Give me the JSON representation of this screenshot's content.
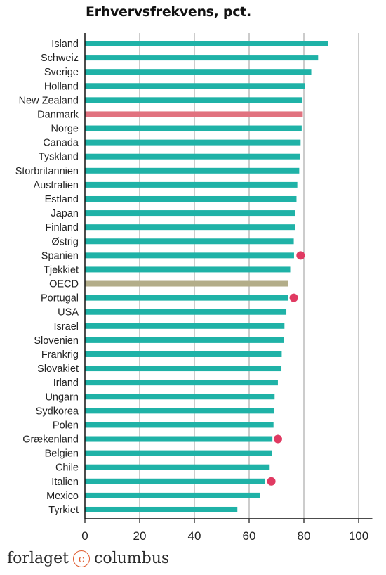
{
  "chart_data": {
    "type": "bar",
    "orientation": "horizontal",
    "title": "Erhvervsfrekvens, pct.",
    "xlim": [
      0,
      105
    ],
    "xticks": [
      0,
      20,
      40,
      60,
      80,
      100
    ],
    "grid": true,
    "categories": [
      "Island",
      "Schweiz",
      "Sverige",
      "Holland",
      "New Zealand",
      "Danmark",
      "Norge",
      "Canada",
      "Tyskland",
      "Storbritannien",
      "Australien",
      "Estland",
      "Japan",
      "Finland",
      "Østrig",
      "Spanien",
      "Tjekkiet",
      "OECD",
      "Portugal",
      "USA",
      "Israel",
      "Slovenien",
      "Frankrig",
      "Slovakiet",
      "Irland",
      "Ungarn",
      "Sydkorea",
      "Polen",
      "Grækenland",
      "Belgien",
      "Chile",
      "Italien",
      "Mexico",
      "Tyrkiet"
    ],
    "values": [
      88.8,
      85.2,
      82.7,
      80.4,
      79.5,
      79.6,
      79.2,
      78.8,
      78.5,
      78.3,
      77.6,
      77.3,
      76.8,
      76.7,
      76.3,
      76.4,
      75.0,
      74.2,
      74.3,
      73.6,
      72.9,
      72.6,
      71.9,
      71.8,
      70.5,
      69.3,
      69.1,
      68.9,
      68.5,
      68.4,
      67.5,
      65.7,
      64.0,
      55.7
    ],
    "markers": {
      "Spanien": 78.8,
      "Portugal": 76.3,
      "Grækenland": 70.5,
      "Italien": 68.1
    },
    "colors": {
      "default": "#1fb2a7",
      "Danmark": "#e1727f",
      "OECD": "#b3ad89",
      "marker": "#e03a62",
      "grid": "#9a9a9a"
    }
  },
  "footer": {
    "brand_left": "forlaget",
    "brand_mark": "c",
    "brand_right": "columbus"
  }
}
